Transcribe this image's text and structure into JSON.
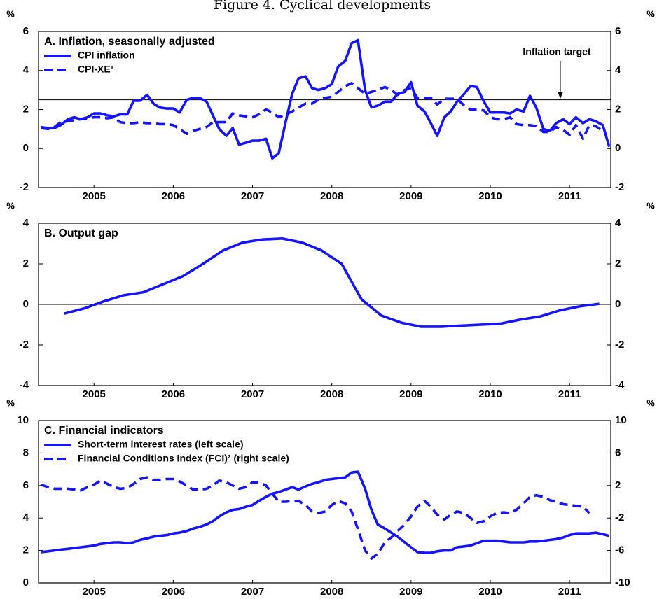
{
  "title": "Figure 4. Cyclical developments",
  "chart_data": [
    {
      "type": "line",
      "title": "A. Inflation, seasonally adjusted",
      "ylabel": "%",
      "y2label": "%",
      "annotation": "Inflation target",
      "reference_line": 2.5,
      "x": [
        2004.83,
        2004.92,
        2005,
        2005.08,
        2005.17,
        2005.25,
        2005.33,
        2005.42,
        2005.5,
        2005.58,
        2005.67,
        2005.75,
        2005.83,
        2005.92,
        2006,
        2006.08,
        2006.17,
        2006.25,
        2006.33,
        2006.42,
        2006.5,
        2006.58,
        2006.67,
        2006.75,
        2006.83,
        2006.92,
        2007,
        2007.08,
        2007.17,
        2007.25,
        2007.33,
        2007.42,
        2007.5,
        2007.58,
        2007.67,
        2007.75,
        2007.83,
        2007.92,
        2008,
        2008.08,
        2008.17,
        2008.25,
        2008.33,
        2008.42,
        2008.5,
        2008.58,
        2008.67,
        2008.75,
        2008.83,
        2008.92,
        2009,
        2009.08,
        2009.17,
        2009.25,
        2009.33,
        2009.42,
        2009.5,
        2009.58,
        2009.67,
        2009.75,
        2009.83,
        2009.92,
        2010,
        2010.08,
        2010.17,
        2010.25,
        2010.33,
        2010.42,
        2010.5,
        2010.58,
        2010.67,
        2010.75,
        2010.83,
        2010.92,
        2011,
        2011.08,
        2011.17,
        2011.25,
        2011.33,
        2011.42,
        2011.5,
        2011.58,
        2011.67,
        2011.75,
        2011.83,
        2011.92,
        2012
      ],
      "series": [
        {
          "name": "CPI inflation",
          "color": "#1414ff",
          "dash": false,
          "values": [
            1.1,
            1.05,
            1.05,
            1.2,
            1.5,
            1.6,
            1.5,
            1.6,
            1.8,
            1.8,
            1.7,
            1.65,
            1.75,
            1.75,
            2.45,
            2.45,
            2.75,
            2.3,
            2.1,
            2.05,
            2.05,
            1.85,
            2.5,
            2.6,
            2.6,
            2.4,
            1.7,
            1.0,
            0.65,
            1.05,
            0.2,
            0.3,
            0.4,
            0.4,
            0.5,
            -0.5,
            -0.25,
            1.4,
            2.8,
            3.6,
            3.7,
            3.1,
            3.0,
            3.1,
            3.3,
            4.2,
            4.5,
            5.4,
            5.55,
            3.0,
            2.1,
            2.2,
            2.4,
            2.4,
            2.8,
            2.9,
            3.4,
            2.2,
            1.9,
            1.3,
            0.65,
            1.6,
            1.9,
            2.4,
            2.8,
            3.2,
            3.15,
            2.4,
            1.85,
            1.85,
            1.85,
            1.8,
            2.0,
            1.9,
            2.7,
            2.1,
            1.0,
            0.9,
            1.3,
            1.5,
            1.25,
            1.6,
            1.3,
            1.5,
            1.4,
            1.2,
            0.1
          ]
        },
        {
          "name": "CPI-XE¹",
          "color": "#1414ff",
          "dash": true,
          "values": [
            1.05,
            1.0,
            1.1,
            1.35,
            1.4,
            1.45,
            1.5,
            1.55,
            1.6,
            1.6,
            1.55,
            1.6,
            1.35,
            1.3,
            1.3,
            1.35,
            1.3,
            1.3,
            1.25,
            1.25,
            1.2,
            1.0,
            0.75,
            0.9,
            1.0,
            1.1,
            1.35,
            1.35,
            1.35,
            1.8,
            1.7,
            1.65,
            1.6,
            1.75,
            2.0,
            1.85,
            1.6,
            1.75,
            1.9,
            2.1,
            2.3,
            2.3,
            2.5,
            2.6,
            2.65,
            2.9,
            3.2,
            3.35,
            3.1,
            2.8,
            2.9,
            3.0,
            3.15,
            3.0,
            2.75,
            3.0,
            3.1,
            2.6,
            2.6,
            2.6,
            2.25,
            2.55,
            2.55,
            2.55,
            2.2,
            2.0,
            2.0,
            1.95,
            1.6,
            1.5,
            1.5,
            1.6,
            1.25,
            1.2,
            1.2,
            1.15,
            0.85,
            0.85,
            1.1,
            0.95,
            0.7,
            1.2,
            0.5,
            1.2,
            1.15,
            0.9,
            null
          ]
        }
      ],
      "xlim": [
        2004.8,
        2012.02
      ],
      "xticks": [
        {
          "value": 2005.5,
          "label": "2005"
        },
        {
          "value": 2006.5,
          "label": "2006"
        },
        {
          "value": 2007.5,
          "label": "2007"
        },
        {
          "value": 2008.5,
          "label": "2008"
        },
        {
          "value": 2009.5,
          "label": "2009"
        },
        {
          "value": 2010.5,
          "label": "2010"
        },
        {
          "value": 2011.5,
          "label": "2011"
        }
      ],
      "ylim": [
        -2,
        6
      ],
      "yticks": [
        -2,
        0,
        2,
        4,
        6
      ],
      "y2lim": [
        -2,
        6
      ],
      "y2ticks": [
        -2,
        0,
        2,
        4,
        6
      ]
    },
    {
      "type": "line",
      "title": "B. Output gap",
      "ylabel": "%",
      "y2label": "%",
      "reference_line": 0,
      "color": "#1414ff",
      "x": [
        2005.125,
        2005.375,
        2005.625,
        2005.875,
        2006.125,
        2006.375,
        2006.625,
        2006.875,
        2007.125,
        2007.375,
        2007.625,
        2007.875,
        2008.125,
        2008.375,
        2008.625,
        2008.875,
        2009.125,
        2009.375,
        2009.625,
        2009.875,
        2010.125,
        2010.375,
        2010.625,
        2010.875,
        2011.125,
        2011.375,
        2011.625,
        2011.875
      ],
      "values": [
        -0.45,
        -0.2,
        0.15,
        0.45,
        0.6,
        1.0,
        1.4,
        2.0,
        2.65,
        3.05,
        3.2,
        3.25,
        3.05,
        2.65,
        2.0,
        0.25,
        -0.55,
        -0.9,
        -1.1,
        -1.1,
        -1.05,
        -1.0,
        -0.95,
        -0.75,
        -0.6,
        -0.3,
        -0.1,
        0.03
      ],
      "xlim": [
        2004.8,
        2012.02
      ],
      "xticks": [
        {
          "value": 2005.5,
          "label": "2005"
        },
        {
          "value": 2006.5,
          "label": "2006"
        },
        {
          "value": 2007.5,
          "label": "2007"
        },
        {
          "value": 2008.5,
          "label": "2008"
        },
        {
          "value": 2009.5,
          "label": "2009"
        },
        {
          "value": 2010.5,
          "label": "2010"
        },
        {
          "value": 2011.5,
          "label": "2011"
        }
      ],
      "ylim": [
        -4,
        4
      ],
      "yticks": [
        -4,
        -2,
        0,
        2,
        4
      ],
      "y2lim": [
        -4,
        4
      ],
      "y2ticks": [
        -4,
        -2,
        0,
        2,
        4
      ]
    },
    {
      "type": "line",
      "title": "C. Financial indicators",
      "ylabel": "%",
      "y2label": "%",
      "x": [
        2004.83,
        2004.92,
        2005,
        2005.08,
        2005.17,
        2005.25,
        2005.33,
        2005.42,
        2005.5,
        2005.58,
        2005.67,
        2005.75,
        2005.83,
        2005.92,
        2006,
        2006.08,
        2006.17,
        2006.25,
        2006.33,
        2006.42,
        2006.5,
        2006.58,
        2006.67,
        2006.75,
        2006.83,
        2006.92,
        2007,
        2007.08,
        2007.17,
        2007.25,
        2007.33,
        2007.42,
        2007.5,
        2007.58,
        2007.67,
        2007.75,
        2007.83,
        2007.92,
        2008,
        2008.08,
        2008.17,
        2008.25,
        2008.33,
        2008.42,
        2008.5,
        2008.58,
        2008.67,
        2008.75,
        2008.83,
        2008.92,
        2009,
        2009.08,
        2009.17,
        2009.25,
        2009.33,
        2009.42,
        2009.5,
        2009.58,
        2009.67,
        2009.75,
        2009.83,
        2009.92,
        2010,
        2010.08,
        2010.17,
        2010.25,
        2010.33,
        2010.42,
        2010.5,
        2010.58,
        2010.67,
        2010.75,
        2010.83,
        2010.92,
        2011,
        2011.08,
        2011.17,
        2011.25,
        2011.33,
        2011.42,
        2011.5,
        2011.58,
        2011.67,
        2011.75,
        2011.83,
        2011.92,
        2012
      ],
      "series": [
        {
          "name": "Short-term interest rates (left scale)",
          "color": "#1414ff",
          "dash": false,
          "values": [
            1.9,
            1.95,
            2.0,
            2.05,
            2.1,
            2.15,
            2.2,
            2.25,
            2.3,
            2.4,
            2.45,
            2.5,
            2.5,
            2.45,
            2.5,
            2.65,
            2.75,
            2.85,
            2.9,
            2.95,
            3.05,
            3.1,
            3.2,
            3.35,
            3.45,
            3.6,
            3.8,
            4.1,
            4.35,
            4.5,
            4.55,
            4.7,
            4.8,
            5.05,
            5.3,
            5.5,
            5.6,
            5.75,
            5.9,
            5.75,
            5.95,
            6.1,
            6.2,
            6.35,
            6.4,
            6.45,
            6.5,
            6.8,
            6.85,
            5.8,
            4.5,
            3.6,
            3.35,
            3.1,
            2.85,
            2.5,
            2.2,
            1.9,
            1.85,
            1.85,
            1.95,
            2.0,
            2.0,
            2.2,
            2.25,
            2.3,
            2.45,
            2.6,
            2.6,
            2.6,
            2.55,
            2.5,
            2.5,
            2.5,
            2.55,
            2.55,
            2.6,
            2.65,
            2.7,
            2.8,
            2.95,
            3.05,
            3.05,
            3.05,
            3.1,
            3.0,
            2.9
          ]
        },
        {
          "name": "Financial Conditions Index (FCI)² (right scale)",
          "color": "#1414ff",
          "dash": true,
          "axis": "y2",
          "values": [
            2.1,
            1.8,
            1.6,
            1.6,
            1.6,
            1.5,
            1.4,
            1.8,
            2.1,
            2.6,
            2.2,
            1.8,
            1.6,
            1.7,
            2.2,
            2.8,
            3.0,
            2.7,
            2.7,
            2.8,
            2.8,
            2.5,
            2.0,
            1.5,
            1.5,
            1.6,
            2.0,
            2.6,
            2.4,
            2.0,
            1.6,
            1.8,
            2.4,
            2.4,
            2.0,
            1.0,
            0.0,
            0.0,
            0.1,
            0.1,
            -0.4,
            -1.2,
            -1.4,
            -1.2,
            -0.4,
            0.1,
            -0.2,
            -1.2,
            -3.4,
            -6.0,
            -7.0,
            -6.4,
            -5.0,
            -4.4,
            -3.6,
            -2.8,
            -1.8,
            -0.6,
            0.1,
            -0.6,
            -1.6,
            -2.2,
            -1.6,
            -1.2,
            -1.4,
            -2.0,
            -2.6,
            -2.4,
            -1.8,
            -1.4,
            -1.3,
            -1.4,
            -1.0,
            -0.2,
            0.6,
            0.8,
            0.6,
            0.2,
            0.0,
            -0.3,
            -0.4,
            -0.5,
            -0.6,
            -1.4,
            null,
            null,
            null
          ]
        }
      ],
      "xlim": [
        2004.8,
        2012.02
      ],
      "xticks": [
        {
          "value": 2005.5,
          "label": "2005"
        },
        {
          "value": 2006.5,
          "label": "2006"
        },
        {
          "value": 2007.5,
          "label": "2007"
        },
        {
          "value": 2008.5,
          "label": "2008"
        },
        {
          "value": 2009.5,
          "label": "2009"
        },
        {
          "value": 2010.5,
          "label": "2010"
        },
        {
          "value": 2011.5,
          "label": "2011"
        }
      ],
      "ylim": [
        0,
        10
      ],
      "yticks": [
        0,
        2,
        4,
        6,
        8,
        10
      ],
      "y2lim": [
        -10,
        10
      ],
      "y2ticks": [
        -10,
        -6,
        -2,
        2,
        6,
        10
      ]
    }
  ]
}
